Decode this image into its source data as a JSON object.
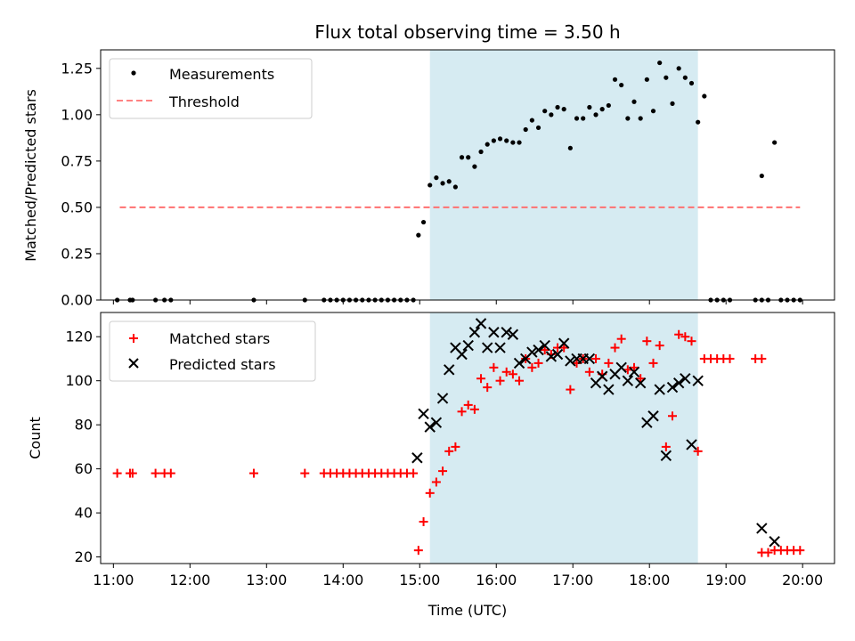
{
  "chart_data": [
    {
      "type": "scatter",
      "title": "Flux total observing time = 3.50 h",
      "xlabel": "",
      "ylabel": "Matched/Predicted stars",
      "xlim": [
        "10:50",
        "20:25"
      ],
      "ylim": [
        0,
        1.35
      ],
      "yticks": [
        "0.00",
        "0.25",
        "0.50",
        "0.75",
        "1.00",
        "1.25"
      ],
      "highlight_span": {
        "start": "15:08",
        "end": "18:38",
        "color": "#add8e6"
      },
      "legend_position": "upper left",
      "series": [
        {
          "name": "Measurements",
          "marker": "dot",
          "color": "#000000",
          "points": [
            [
              "11:03",
              0
            ],
            [
              "11:13",
              0
            ],
            [
              "11:15",
              0
            ],
            [
              "11:33",
              0
            ],
            [
              "11:40",
              0
            ],
            [
              "11:45",
              0
            ],
            [
              "12:50",
              0
            ],
            [
              "13:30",
              0
            ],
            [
              "13:45",
              0
            ],
            [
              "13:50",
              0
            ],
            [
              "13:55",
              0
            ],
            [
              "14:00",
              0
            ],
            [
              "14:05",
              0
            ],
            [
              "14:10",
              0
            ],
            [
              "14:15",
              0
            ],
            [
              "14:20",
              0
            ],
            [
              "14:25",
              0
            ],
            [
              "14:30",
              0
            ],
            [
              "14:35",
              0
            ],
            [
              "14:40",
              0
            ],
            [
              "14:45",
              0
            ],
            [
              "14:50",
              0
            ],
            [
              "14:55",
              0
            ],
            [
              "14:59",
              0.35
            ],
            [
              "15:03",
              0.42
            ],
            [
              "15:08",
              0.62
            ],
            [
              "15:13",
              0.66
            ],
            [
              "15:18",
              0.63
            ],
            [
              "15:23",
              0.64
            ],
            [
              "15:28",
              0.61
            ],
            [
              "15:33",
              0.77
            ],
            [
              "15:38",
              0.77
            ],
            [
              "15:43",
              0.72
            ],
            [
              "15:48",
              0.8
            ],
            [
              "15:53",
              0.84
            ],
            [
              "15:58",
              0.86
            ],
            [
              "16:03",
              0.87
            ],
            [
              "16:08",
              0.86
            ],
            [
              "16:13",
              0.85
            ],
            [
              "16:18",
              0.85
            ],
            [
              "16:23",
              0.92
            ],
            [
              "16:28",
              0.97
            ],
            [
              "16:33",
              0.93
            ],
            [
              "16:38",
              1.02
            ],
            [
              "16:43",
              1.0
            ],
            [
              "16:48",
              1.04
            ],
            [
              "16:53",
              1.03
            ],
            [
              "16:58",
              0.82
            ],
            [
              "17:03",
              0.98
            ],
            [
              "17:08",
              0.98
            ],
            [
              "17:13",
              1.04
            ],
            [
              "17:18",
              1.0
            ],
            [
              "17:23",
              1.03
            ],
            [
              "17:28",
              1.05
            ],
            [
              "17:33",
              1.19
            ],
            [
              "17:38",
              1.16
            ],
            [
              "17:43",
              0.98
            ],
            [
              "17:48",
              1.07
            ],
            [
              "17:53",
              0.98
            ],
            [
              "17:58",
              1.19
            ],
            [
              "18:03",
              1.02
            ],
            [
              "18:08",
              1.28
            ],
            [
              "18:13",
              1.2
            ],
            [
              "18:18",
              1.06
            ],
            [
              "18:23",
              1.25
            ],
            [
              "18:28",
              1.2
            ],
            [
              "18:33",
              1.17
            ],
            [
              "18:38",
              0.96
            ],
            [
              "18:43",
              1.1
            ],
            [
              "18:48",
              0
            ],
            [
              "18:53",
              0
            ],
            [
              "18:58",
              0
            ],
            [
              "19:03",
              0
            ],
            [
              "19:23",
              0
            ],
            [
              "19:28",
              0
            ],
            [
              "19:28",
              0.67
            ],
            [
              "19:38",
              0.85
            ],
            [
              "19:33",
              0
            ],
            [
              "19:43",
              0
            ],
            [
              "19:48",
              0
            ],
            [
              "19:53",
              0
            ],
            [
              "19:58",
              0
            ]
          ]
        }
      ],
      "threshold": {
        "name": "Threshold",
        "value": 0.5,
        "x_range": [
          "11:05",
          "19:58"
        ],
        "color": "#ff7070",
        "style": "dashed"
      }
    },
    {
      "type": "scatter",
      "title": "",
      "xlabel": "Time (UTC)",
      "ylabel": "Count",
      "xlim": [
        "10:50",
        "20:25"
      ],
      "ylim": [
        17,
        131
      ],
      "yticks": [
        "20",
        "40",
        "60",
        "80",
        "100",
        "120"
      ],
      "xticks": [
        "11:00",
        "12:00",
        "13:00",
        "14:00",
        "15:00",
        "16:00",
        "17:00",
        "18:00",
        "19:00",
        "20:00"
      ],
      "highlight_span": {
        "start": "15:08",
        "end": "18:38",
        "color": "#add8e6"
      },
      "legend_position": "upper left",
      "series": [
        {
          "name": "Matched stars",
          "marker": "plus",
          "color": "#ff0000",
          "points": [
            [
              "11:03",
              58
            ],
            [
              "11:13",
              58
            ],
            [
              "11:15",
              58
            ],
            [
              "11:33",
              58
            ],
            [
              "11:40",
              58
            ],
            [
              "11:45",
              58
            ],
            [
              "12:50",
              58
            ],
            [
              "13:30",
              58
            ],
            [
              "13:45",
              58
            ],
            [
              "13:50",
              58
            ],
            [
              "13:55",
              58
            ],
            [
              "14:00",
              58
            ],
            [
              "14:05",
              58
            ],
            [
              "14:10",
              58
            ],
            [
              "14:15",
              58
            ],
            [
              "14:20",
              58
            ],
            [
              "14:25",
              58
            ],
            [
              "14:30",
              58
            ],
            [
              "14:35",
              58
            ],
            [
              "14:40",
              58
            ],
            [
              "14:45",
              58
            ],
            [
              "14:50",
              58
            ],
            [
              "14:55",
              58
            ],
            [
              "14:59",
              23
            ],
            [
              "15:03",
              36
            ],
            [
              "15:08",
              49
            ],
            [
              "15:13",
              54
            ],
            [
              "15:18",
              59
            ],
            [
              "15:23",
              68
            ],
            [
              "15:28",
              70
            ],
            [
              "15:33",
              86
            ],
            [
              "15:38",
              89
            ],
            [
              "15:43",
              87
            ],
            [
              "15:48",
              101
            ],
            [
              "15:53",
              97
            ],
            [
              "15:58",
              106
            ],
            [
              "16:03",
              100
            ],
            [
              "16:08",
              104
            ],
            [
              "16:13",
              103
            ],
            [
              "16:18",
              100
            ],
            [
              "16:23",
              110
            ],
            [
              "16:28",
              106
            ],
            [
              "16:33",
              108
            ],
            [
              "16:38",
              114
            ],
            [
              "16:43",
              112
            ],
            [
              "16:48",
              115
            ],
            [
              "16:53",
              115
            ],
            [
              "16:58",
              96
            ],
            [
              "17:03",
              108
            ],
            [
              "17:08",
              110
            ],
            [
              "17:13",
              104
            ],
            [
              "17:18",
              110
            ],
            [
              "17:23",
              103
            ],
            [
              "17:28",
              108
            ],
            [
              "17:33",
              115
            ],
            [
              "17:38",
              119
            ],
            [
              "17:43",
              105
            ],
            [
              "17:48",
              106
            ],
            [
              "17:53",
              101
            ],
            [
              "17:58",
              118
            ],
            [
              "18:03",
              108
            ],
            [
              "18:08",
              116
            ],
            [
              "18:13",
              70
            ],
            [
              "18:18",
              84
            ],
            [
              "18:23",
              121
            ],
            [
              "18:28",
              120
            ],
            [
              "18:33",
              118
            ],
            [
              "18:38",
              68
            ],
            [
              "18:43",
              110
            ],
            [
              "18:48",
              110
            ],
            [
              "18:53",
              110
            ],
            [
              "18:58",
              110
            ],
            [
              "19:03",
              110
            ],
            [
              "19:23",
              110
            ],
            [
              "19:28",
              110
            ],
            [
              "19:28",
              22
            ],
            [
              "19:33",
              22
            ],
            [
              "19:38",
              23
            ],
            [
              "19:43",
              23
            ],
            [
              "19:48",
              23
            ],
            [
              "19:53",
              23
            ],
            [
              "19:58",
              23
            ]
          ]
        },
        {
          "name": "Predicted stars",
          "marker": "x",
          "color": "#000000",
          "points": [
            [
              "14:58",
              65
            ],
            [
              "15:03",
              85
            ],
            [
              "15:08",
              79
            ],
            [
              "15:13",
              81
            ],
            [
              "15:18",
              92
            ],
            [
              "15:23",
              105
            ],
            [
              "15:28",
              115
            ],
            [
              "15:33",
              112
            ],
            [
              "15:38",
              116
            ],
            [
              "15:43",
              122
            ],
            [
              "15:48",
              126
            ],
            [
              "15:53",
              115
            ],
            [
              "15:58",
              122
            ],
            [
              "16:03",
              115
            ],
            [
              "16:08",
              122
            ],
            [
              "16:13",
              121
            ],
            [
              "16:18",
              108
            ],
            [
              "16:23",
              110
            ],
            [
              "16:28",
              113
            ],
            [
              "16:33",
              114
            ],
            [
              "16:38",
              116
            ],
            [
              "16:43",
              111
            ],
            [
              "16:48",
              112
            ],
            [
              "16:53",
              117
            ],
            [
              "16:58",
              109
            ],
            [
              "17:03",
              110
            ],
            [
              "17:08",
              110
            ],
            [
              "17:13",
              110
            ],
            [
              "17:18",
              99
            ],
            [
              "17:23",
              102
            ],
            [
              "17:28",
              96
            ],
            [
              "17:33",
              103
            ],
            [
              "17:38",
              106
            ],
            [
              "17:43",
              100
            ],
            [
              "17:48",
              104
            ],
            [
              "17:53",
              99
            ],
            [
              "17:58",
              81
            ],
            [
              "18:03",
              84
            ],
            [
              "18:08",
              96
            ],
            [
              "18:13",
              66
            ],
            [
              "18:18",
              97
            ],
            [
              "18:23",
              99
            ],
            [
              "18:28",
              101
            ],
            [
              "18:33",
              71
            ],
            [
              "18:38",
              100
            ],
            [
              "19:28",
              33
            ],
            [
              "19:38",
              27
            ]
          ]
        }
      ]
    }
  ]
}
